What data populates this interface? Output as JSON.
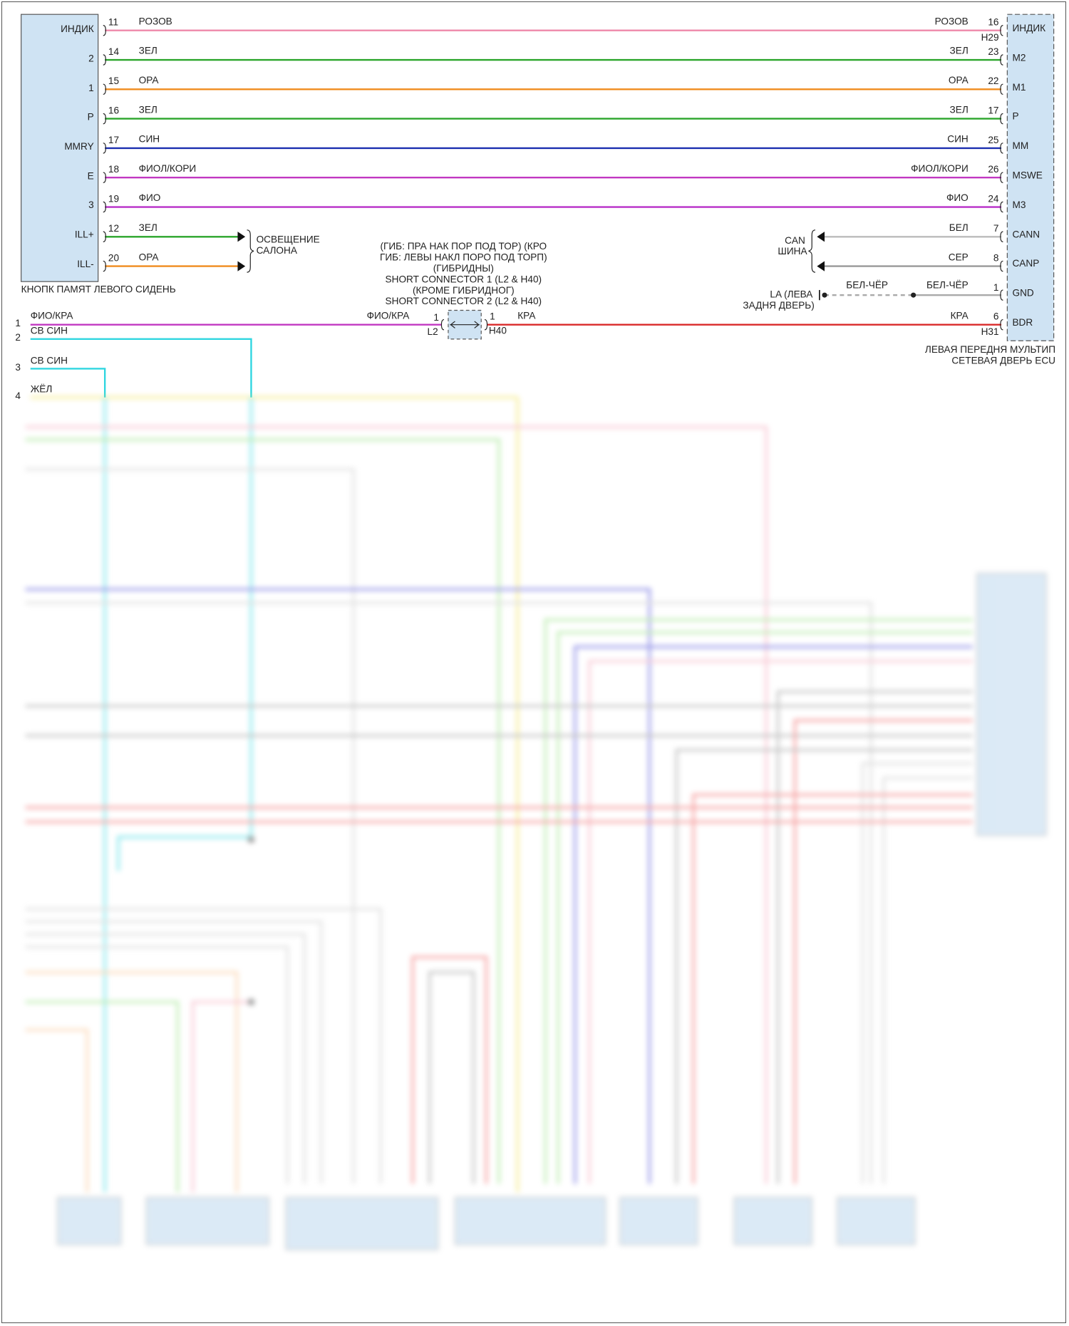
{
  "left_module": {
    "name": "КНОПК ПАМЯТ ЛЕВОГО СИДЕНЬ",
    "pins": [
      "ИНДИК",
      "2",
      "1",
      "P",
      "MMRY",
      "E",
      "3",
      "ILL+",
      "ILL-"
    ]
  },
  "right_module": {
    "name_line1": "ЛЕВАЯ ПЕРЕДНЯ МУЛЬТИП",
    "name_line2": "СЕТЕВАЯ ДВЕРЬ ECU",
    "pins": [
      "ИНДИК",
      "M2",
      "M1",
      "P",
      "MM",
      "MSWE",
      "M3",
      "CANN",
      "CANP",
      "GND",
      "BDR"
    ]
  },
  "wires": [
    {
      "lpin": "11",
      "lcolor": "РОЗОВ",
      "rcolor": "РОЗОВ",
      "rpin": "16",
      "hex": "#ee88aa"
    },
    {
      "lpin": "14",
      "lcolor": "ЗЕЛ",
      "rcolor": "ЗЕЛ",
      "rpin": "23",
      "hex": "#2aa52a"
    },
    {
      "lpin": "15",
      "lcolor": "ОРА",
      "rcolor": "ОРА",
      "rpin": "22",
      "hex": "#f08c1e"
    },
    {
      "lpin": "16",
      "lcolor": "ЗЕЛ",
      "rcolor": "ЗЕЛ",
      "rpin": "17",
      "hex": "#2aa52a"
    },
    {
      "lpin": "17",
      "lcolor": "СИН",
      "rcolor": "СИН",
      "rpin": "25",
      "hex": "#1c2fb0"
    },
    {
      "lpin": "18",
      "lcolor": "ФИОЛ/КОРИ",
      "rcolor": "ФИОЛ/КОРИ",
      "rpin": "26",
      "hex": "#c238c2"
    },
    {
      "lpin": "19",
      "lcolor": "ФИО",
      "rcolor": "ФИО",
      "rpin": "24",
      "hex": "#b82ec8"
    }
  ],
  "connector_labels": {
    "h29": "H29",
    "h31": "H31",
    "l2": "L2",
    "h40": "H40"
  },
  "illumination": {
    "wires": [
      {
        "pin": "12",
        "color": "ЗЕЛ",
        "hex": "#2aa52a"
      },
      {
        "pin": "20",
        "color": "ОРА",
        "hex": "#f08c1e"
      }
    ],
    "label_line1": "ОСВЕЩЕНИЕ",
    "label_line2": "САЛОНА"
  },
  "can_bus": {
    "label_line1": "CAN",
    "label_line2": "ШИНА",
    "wires": [
      {
        "color": "БЕЛ",
        "pin": "7",
        "hex": "#bbbbbb"
      },
      {
        "color": "СЕР",
        "pin": "8",
        "hex": "#999999"
      }
    ]
  },
  "ground": {
    "pin": "1",
    "wire_color": "БЕЛ-ЧЁР",
    "dashed_label": "БЕЛ-ЧЁР",
    "label_line1": "LA (ЛЕВА",
    "label_line2": "ЗАДНЯ ДВЕРЬ)"
  },
  "short_connector": {
    "notes": [
      "(ГИБ: ПРА НАК ПОР ПОД ТОР) (КРО",
      "ГИБ: ЛЕВЫ НАКЛ ПОРО ПОД ТОРП)",
      "(ГИБРИДНЫ)",
      "SHORT CONNECTOR 1 (L2 & H40)",
      "(КРОМЕ ГИБРИДНОГ)",
      "SHORT CONNECTOR 2 (L2 & H40)"
    ],
    "in_pin": "1",
    "out_pin": "1",
    "in_color": "ФИО/КРА",
    "out_color": "КРА",
    "bdr_pin": "6"
  },
  "bottom_left_wires": [
    {
      "index": "1",
      "color": "ФИО/КРА"
    },
    {
      "index": "2",
      "color": "СВ СИН"
    },
    {
      "index": "3",
      "color": "СВ СИН"
    },
    {
      "index": "4",
      "color": "ЖЁЛ"
    }
  ]
}
